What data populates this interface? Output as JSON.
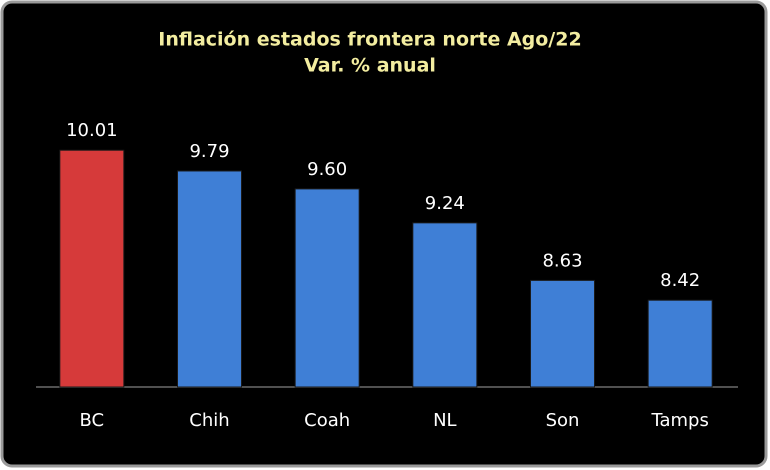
{
  "chart_data": {
    "type": "bar",
    "title": "Inflación estados frontera norte Ago/22",
    "subtitle": "Var. % anual",
    "categories": [
      "BC",
      "Chih",
      "Coah",
      "NL",
      "Son",
      "Tamps"
    ],
    "values": [
      10.01,
      9.79,
      9.6,
      9.24,
      8.63,
      8.42
    ],
    "value_labels": [
      "10.01",
      "9.79",
      "9.60",
      "9.24",
      "8.63",
      "8.42"
    ],
    "colors": [
      "#d63a3a",
      "#3f7fd6",
      "#3f7fd6",
      "#3f7fd6",
      "#3f7fd6",
      "#3f7fd6"
    ],
    "ylim": [
      7.5,
      10.5
    ]
  }
}
